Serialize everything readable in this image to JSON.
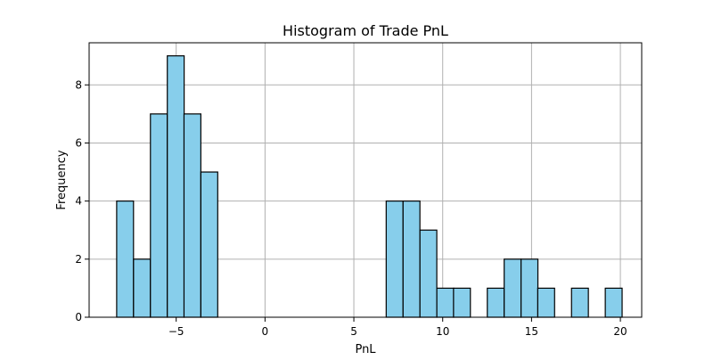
{
  "chart_data": {
    "type": "bar",
    "title": "Histogram of Trade PnL",
    "xlabel": "PnL",
    "ylabel": "Frequency",
    "xlim": [
      -9.9,
      21.2
    ],
    "ylim": [
      0,
      9.45
    ],
    "x_ticks": [
      -5,
      0,
      5,
      10,
      15,
      20
    ],
    "y_ticks": [
      0,
      2,
      4,
      6,
      8
    ],
    "grid": true,
    "bin_width": 0.948,
    "bins": [
      {
        "start": -8.35,
        "count": 4
      },
      {
        "start": -7.4,
        "count": 2
      },
      {
        "start": -6.45,
        "count": 7
      },
      {
        "start": -5.5,
        "count": 9
      },
      {
        "start": -4.56,
        "count": 7
      },
      {
        "start": -3.61,
        "count": 5
      },
      {
        "start": 6.82,
        "count": 4
      },
      {
        "start": 7.77,
        "count": 4
      },
      {
        "start": 8.72,
        "count": 3
      },
      {
        "start": 9.67,
        "count": 1
      },
      {
        "start": 10.61,
        "count": 1
      },
      {
        "start": 12.51,
        "count": 1
      },
      {
        "start": 13.46,
        "count": 2
      },
      {
        "start": 14.41,
        "count": 2
      },
      {
        "start": 15.35,
        "count": 1
      },
      {
        "start": 17.25,
        "count": 1
      },
      {
        "start": 19.15,
        "count": 1
      }
    ],
    "colors": {
      "bar_fill": "#87ceeb",
      "bar_edge": "#000000",
      "grid": "#b0b0b0",
      "axis": "#000000"
    }
  }
}
